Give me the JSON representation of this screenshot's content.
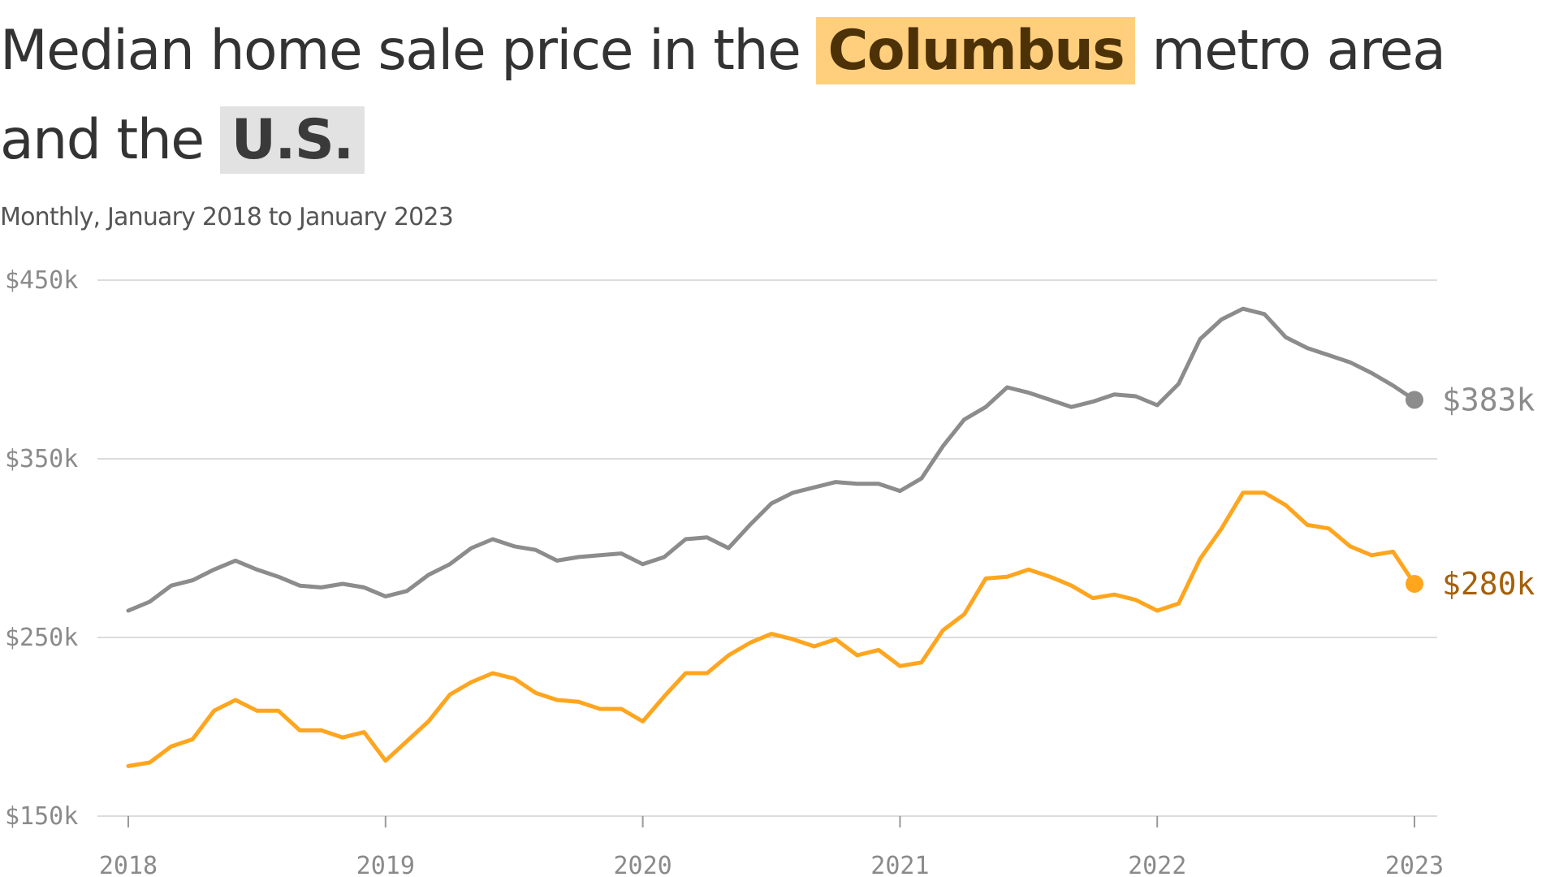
{
  "title": {
    "prefix": "Median home sale price in the",
    "highlight1": "Columbus",
    "middle": "metro area and the",
    "highlight2": "U.S."
  },
  "subtitle": "Monthly, January 2018 to January 2023",
  "colors": {
    "columbus": "#ffa51e",
    "columbus_label": "#a6600a",
    "us": "#8c8c8c",
    "grid": "#dcdcdc",
    "title": "#333333"
  },
  "chart_data": {
    "type": "line",
    "x_start": "2018-01",
    "x_end": "2023-01",
    "x_ticks": [
      "2018",
      "2019",
      "2020",
      "2021",
      "2022",
      "2023"
    ],
    "y_ticks": [
      "$450k",
      "$350k",
      "$250k",
      "$150k"
    ],
    "ylim": [
      150,
      450
    ],
    "grid": true,
    "series": [
      {
        "name": "U.S.",
        "end_label": "$383k",
        "values": [
          265,
          270,
          279,
          282,
          288,
          293,
          288,
          284,
          279,
          278,
          280,
          278,
          273,
          276,
          285,
          291,
          300,
          305,
          301,
          299,
          293,
          295,
          296,
          297,
          291,
          295,
          305,
          306,
          300,
          313,
          325,
          331,
          334,
          337,
          336,
          336,
          332,
          339,
          357,
          372,
          379,
          390,
          387,
          383,
          379,
          382,
          386,
          385,
          380,
          392,
          417,
          428,
          434,
          431,
          418,
          412,
          408,
          404,
          398,
          391,
          383
        ]
      },
      {
        "name": "Columbus",
        "end_label": "$280k",
        "values": [
          178,
          180,
          189,
          193,
          209,
          215,
          209,
          209,
          198,
          198,
          194,
          197,
          181,
          192,
          203,
          218,
          225,
          230,
          227,
          219,
          215,
          214,
          210,
          210,
          203,
          217,
          230,
          230,
          240,
          247,
          252,
          249,
          245,
          249,
          240,
          243,
          234,
          236,
          254,
          263,
          283,
          284,
          288,
          284,
          279,
          272,
          274,
          271,
          265,
          269,
          294,
          311,
          331,
          331,
          324,
          313,
          311,
          301,
          296,
          298,
          280
        ]
      }
    ]
  }
}
